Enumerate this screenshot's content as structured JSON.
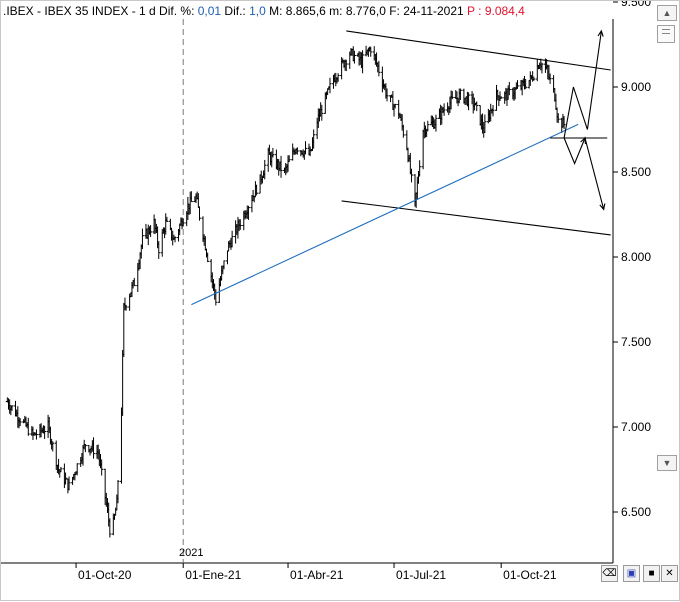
{
  "header": {
    "prefix": ".IBEX - IBEX 35 INDEX -  1 d Dif. %: ",
    "dif_pct": "0,01",
    "dif_label": " Dif.: ",
    "dif": "1,0",
    "rest": "  M: 8.865,6  m: 8.776,0  F: 24-11-2021 ",
    "p_label": "P : 9.084,4"
  },
  "year_label": "2021",
  "colors": {
    "price": "#000000",
    "trendline": "#1f6fbf",
    "channel": "#000000",
    "grid_dash": "#7a7a7a",
    "p_value": "#e0142c",
    "dif_value": "#1e5fb4"
  },
  "icons": [
    "chevron-up-icon",
    "scroll-box-icon",
    "chevron-down-icon",
    "eraser-icon",
    "save-icon",
    "stop-icon"
  ],
  "chart_data": {
    "type": "line",
    "style": "ohlc-bars",
    "instrument": "IBEX 35 INDEX",
    "ylim": [
      6200,
      9400
    ],
    "yticks": [
      "9.500",
      "9.000",
      "8.500",
      "8.000",
      "7.500",
      "7.000",
      "6.500"
    ],
    "ytick_values": [
      9500,
      9000,
      8500,
      8000,
      7500,
      7000,
      6500
    ],
    "x_labels": [
      "01-Oct-20",
      "01-Ene-21",
      "01-Abr-21",
      "01-Jul-21",
      "01-Oct-21"
    ],
    "x_label_dates": [
      "2020-10-01",
      "2021-01-01",
      "2021-04-01",
      "2021-07-01",
      "2021-10-01"
    ],
    "xlim": [
      "2020-08-01",
      "2022-01-05"
    ],
    "year_marker_date": "2021-01-01",
    "price_path": [
      [
        "2020-08-03",
        7150
      ],
      [
        "2020-08-14",
        7050
      ],
      [
        "2020-08-25",
        6950
      ],
      [
        "2020-09-07",
        7000
      ],
      [
        "2020-09-16",
        6750
      ],
      [
        "2020-09-25",
        6650
      ],
      [
        "2020-10-09",
        6900
      ],
      [
        "2020-10-20",
        6850
      ],
      [
        "2020-10-28",
        6500
      ],
      [
        "2020-10-31",
        6350
      ],
      [
        "2020-11-05",
        6550
      ],
      [
        "2020-11-09",
        7100
      ],
      [
        "2020-11-11",
        7700
      ],
      [
        "2020-11-20",
        7850
      ],
      [
        "2020-11-27",
        8100
      ],
      [
        "2020-12-07",
        8200
      ],
      [
        "2020-12-11",
        8050
      ],
      [
        "2020-12-17",
        8200
      ],
      [
        "2020-12-24",
        8100
      ],
      [
        "2021-01-05",
        8300
      ],
      [
        "2021-01-12",
        8350
      ],
      [
        "2021-01-22",
        8000
      ],
      [
        "2021-01-29",
        7750
      ],
      [
        "2021-02-08",
        8050
      ],
      [
        "2021-02-22",
        8250
      ],
      [
        "2021-03-08",
        8450
      ],
      [
        "2021-03-15",
        8600
      ],
      [
        "2021-03-29",
        8500
      ],
      [
        "2021-04-08",
        8650
      ],
      [
        "2021-04-20",
        8600
      ],
      [
        "2021-04-26",
        8800
      ],
      [
        "2021-05-10",
        9050
      ],
      [
        "2021-05-24",
        9200
      ],
      [
        "2021-06-03",
        9150
      ],
      [
        "2021-06-11",
        9230
      ],
      [
        "2021-06-18",
        9100
      ],
      [
        "2021-06-25",
        8950
      ],
      [
        "2021-07-05",
        8850
      ],
      [
        "2021-07-12",
        8650
      ],
      [
        "2021-07-19",
        8300
      ],
      [
        "2021-07-26",
        8750
      ],
      [
        "2021-08-06",
        8800
      ],
      [
        "2021-08-16",
        8900
      ],
      [
        "2021-08-27",
        8950
      ],
      [
        "2021-09-08",
        8900
      ],
      [
        "2021-09-16",
        8750
      ],
      [
        "2021-09-27",
        8950
      ],
      [
        "2021-10-05",
        8950
      ],
      [
        "2021-10-18",
        9000
      ],
      [
        "2021-10-27",
        9050
      ],
      [
        "2021-11-03",
        9150
      ],
      [
        "2021-11-09",
        9100
      ],
      [
        "2021-11-16",
        8950
      ],
      [
        "2021-11-19",
        8800
      ],
      [
        "2021-11-24",
        8780
      ]
    ],
    "bar_volatility": 55,
    "annotations": {
      "upper_channel": [
        [
          "2021-05-21",
          9330
        ],
        [
          "2022-01-03",
          9100
        ]
      ],
      "lower_channel": [
        [
          "2021-05-17",
          8330
        ],
        [
          "2022-01-03",
          8130
        ]
      ],
      "rising_trendline": [
        [
          "2021-01-08",
          7720
        ],
        [
          "2021-12-06",
          8780
        ]
      ],
      "horizontal_level": [
        [
          "2021-11-12",
          8700
        ],
        [
          "2021-12-31",
          8700
        ]
      ],
      "scenario_up": [
        [
          "2021-11-24",
          8700
        ],
        [
          "2021-12-02",
          9000
        ],
        [
          "2021-12-14",
          8750
        ],
        [
          "2021-12-26",
          9330
        ]
      ],
      "scenario_down": [
        [
          "2021-11-24",
          8700
        ],
        [
          "2021-12-03",
          8550
        ],
        [
          "2021-12-12",
          8700
        ],
        [
          "2021-12-28",
          8280
        ]
      ]
    }
  }
}
